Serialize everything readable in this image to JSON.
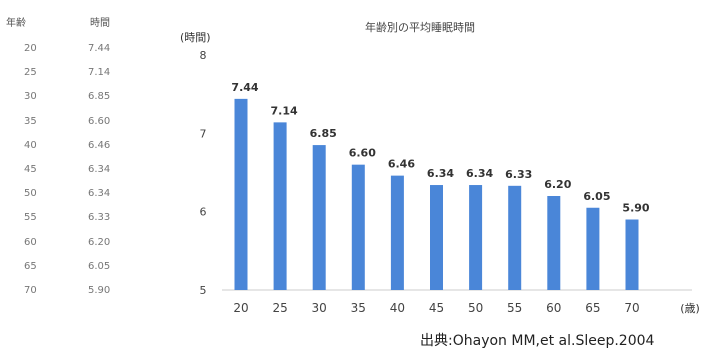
{
  "table": {
    "header_age": "年齢",
    "header_value": "時間",
    "rows": [
      {
        "age": "20",
        "value": "7.44"
      },
      {
        "age": "25",
        "value": "7.14"
      },
      {
        "age": "30",
        "value": "6.85"
      },
      {
        "age": "35",
        "value": "6.60"
      },
      {
        "age": "40",
        "value": "6.46"
      },
      {
        "age": "45",
        "value": "6.34"
      },
      {
        "age": "50",
        "value": "6.34"
      },
      {
        "age": "55",
        "value": "6.33"
      },
      {
        "age": "60",
        "value": "6.20"
      },
      {
        "age": "65",
        "value": "6.05"
      },
      {
        "age": "70",
        "value": "5.90"
      }
    ]
  },
  "chart_data": {
    "type": "bar",
    "title": "年齢別の平均睡眠時間",
    "ylabel": "(時間)",
    "xlabel_unit": "(歳)",
    "categories": [
      "20",
      "25",
      "30",
      "35",
      "40",
      "45",
      "50",
      "55",
      "60",
      "65",
      "70"
    ],
    "values": [
      7.44,
      7.14,
      6.85,
      6.6,
      6.46,
      6.34,
      6.34,
      6.33,
      6.2,
      6.05,
      5.9
    ],
    "value_labels": [
      "7.44",
      "7.14",
      "6.85",
      "6.60",
      "6.46",
      "6.34",
      "6.34",
      "6.33",
      "6.20",
      "6.05",
      "5.90"
    ],
    "ylim": [
      5,
      8
    ],
    "yticks": [
      5,
      6,
      7,
      8
    ],
    "grid": false,
    "bar_color": "#4a86d8"
  },
  "source": "出典:Ohayon MM,et al.Sleep.2004"
}
